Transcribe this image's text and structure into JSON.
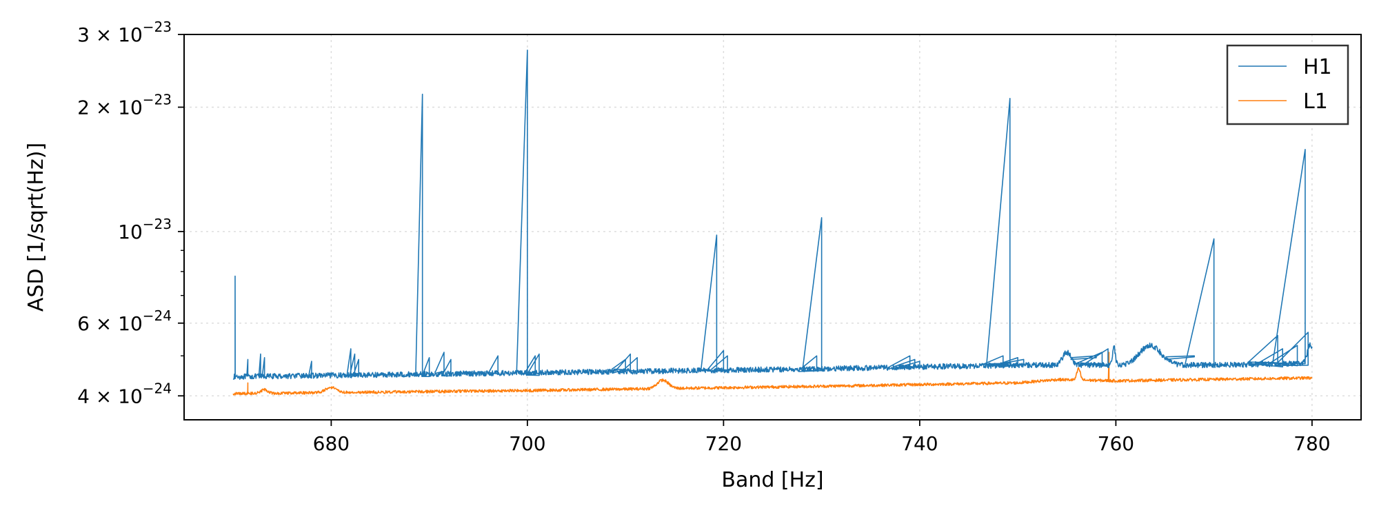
{
  "chart_data": {
    "type": "line",
    "xlabel": "Band [Hz]",
    "ylabel": "ASD [1/sqrt(Hz)]",
    "xlim": [
      665,
      785
    ],
    "ylim": [
      3.5e-24,
      3e-23
    ],
    "yscale": "log",
    "grid": true,
    "legend_position": "top-right",
    "x_ticks": [
      680,
      700,
      720,
      740,
      760,
      780
    ],
    "x_tick_labels": [
      "680",
      "700",
      "720",
      "740",
      "760",
      "780"
    ],
    "y_major_ticks": [
      {
        "value": 4e-24,
        "mant": "4",
        "times": "×",
        "base": "10",
        "exp": "−24"
      },
      {
        "value": 6e-24,
        "mant": "6",
        "times": "×",
        "base": "10",
        "exp": "−24"
      },
      {
        "value": 1e-23,
        "mant": "",
        "times": "",
        "base": "10",
        "exp": "−23"
      },
      {
        "value": 2e-23,
        "mant": "2",
        "times": "×",
        "base": "10",
        "exp": "−23"
      },
      {
        "value": 3e-23,
        "mant": "3",
        "times": "×",
        "base": "10",
        "exp": "−23"
      }
    ],
    "y_minor_ticks": [
      5e-24,
      7e-24,
      8e-24,
      9e-24
    ],
    "colors": {
      "H1": "#1f77b4",
      "L1": "#ff7f0e"
    },
    "series": [
      {
        "name": "H1",
        "baseline": [
          [
            670,
            4.45e-24
          ],
          [
            700,
            4.55e-24
          ],
          [
            730,
            4.65e-24
          ],
          [
            750,
            4.75e-24
          ],
          [
            770,
            4.75e-24
          ],
          [
            780,
            4.8e-24
          ]
        ],
        "bumps": [
          {
            "x": 755,
            "amp": 3.5e-25,
            "w": 0.6
          },
          {
            "x": 763.5,
            "amp": 5.5e-25,
            "w": 1.5
          },
          {
            "x": 759.8,
            "amp": 5e-25,
            "w": 0.2
          },
          {
            "x": 779.8,
            "amp": 5e-25,
            "w": 0.4
          }
        ],
        "lines": [
          [
            670.2,
            7.8e-24
          ],
          [
            671.5,
            4.9e-24
          ],
          [
            672.8,
            5.05e-24
          ],
          [
            673.2,
            4.95e-24
          ],
          [
            678,
            4.85e-24
          ],
          [
            682,
            5.2e-24
          ],
          [
            682.4,
            5.05e-24
          ],
          [
            682.8,
            4.9e-24
          ],
          [
            689.3,
            2.15e-23
          ],
          [
            690,
            4.95e-24
          ],
          [
            691.5,
            5.1e-24
          ],
          [
            692.2,
            4.9e-24
          ],
          [
            697,
            5e-24
          ],
          [
            700,
            2.75e-23
          ],
          [
            700.8,
            5e-24
          ],
          [
            701.2,
            5.05e-24
          ],
          [
            710,
            4.9e-24
          ],
          [
            710.5,
            5.05e-24
          ],
          [
            711.2,
            4.95e-24
          ],
          [
            719.3,
            9.8e-24
          ],
          [
            720,
            5.15e-24
          ],
          [
            720.4,
            5e-24
          ],
          [
            729.5,
            5e-24
          ],
          [
            730,
            1.08e-23
          ],
          [
            739,
            5e-24
          ],
          [
            739.5,
            4.9e-24
          ],
          [
            740,
            4.85e-24
          ],
          [
            748.5,
            5e-24
          ],
          [
            749.2,
            2.1e-23
          ],
          [
            750,
            4.95e-24
          ],
          [
            750.6,
            4.9e-24
          ],
          [
            758,
            5e-24
          ],
          [
            758.6,
            5.1e-24
          ],
          [
            759.2,
            5.2e-24
          ],
          [
            768,
            5e-24
          ],
          [
            770,
            9.6e-24
          ],
          [
            776.5,
            5.6e-24
          ],
          [
            777,
            5.2e-24
          ],
          [
            778.5,
            5.3e-24
          ],
          [
            779.3,
            1.58e-23
          ],
          [
            779.6,
            5.7e-24
          ]
        ],
        "noise": 0.015,
        "x_start": 670,
        "x_end": 780
      },
      {
        "name": "L1",
        "baseline": [
          [
            670,
            4.05e-24
          ],
          [
            700,
            4.12e-24
          ],
          [
            730,
            4.22e-24
          ],
          [
            750,
            4.3e-24
          ],
          [
            754,
            4.38e-24
          ],
          [
            760,
            4.35e-24
          ],
          [
            780,
            4.42e-24
          ]
        ],
        "bumps": [
          {
            "x": 673.2,
            "amp": 8e-26,
            "w": 0.5
          },
          {
            "x": 680,
            "amp": 1.2e-25,
            "w": 0.8
          },
          {
            "x": 713.8,
            "amp": 2e-25,
            "w": 0.8
          },
          {
            "x": 756.2,
            "amp": 2.8e-25,
            "w": 0.25
          }
        ],
        "lines": [
          [
            671.5,
            4.3e-24
          ],
          [
            759.3,
            5.1e-24
          ]
        ],
        "noise": 0.008,
        "x_start": 670,
        "x_end": 780
      }
    ]
  }
}
